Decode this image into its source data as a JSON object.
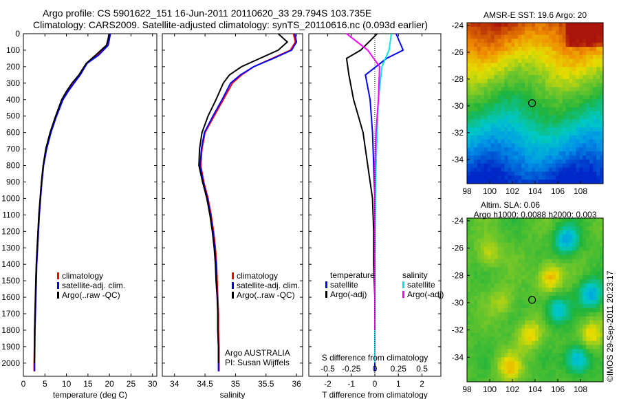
{
  "header": {
    "line1": "Argo profile: CS 5901622_151 16-Jun-2011 20110620_33 29.794S 103.735E",
    "line2": "Climatology: CARS2009. Satellite-adjusted climatology: synTS_20110616.nc (0.093d earlier)"
  },
  "footer": {
    "credit": "©IMOS 29-Sep-2011 20:23:17"
  },
  "colors": {
    "climatology": "#ff0000",
    "satellite": "#0000ff",
    "argo": "#000000",
    "sal_satellite": "#00e5e5",
    "sal_argo": "#ff00ff"
  },
  "chart_data": [
    {
      "type": "line",
      "id": "temperature_profile",
      "xlabel": "temperature (deg C)",
      "ylabel": "",
      "xlim": [
        0,
        31
      ],
      "ylim": [
        0,
        2080
      ],
      "y_inverted": true,
      "xticks": [
        0,
        5,
        10,
        15,
        20,
        25,
        30
      ],
      "yticks": [
        0,
        100,
        200,
        300,
        400,
        500,
        600,
        700,
        800,
        900,
        1000,
        1100,
        1200,
        1300,
        1400,
        1500,
        1600,
        1700,
        1800,
        1900,
        2000
      ],
      "legend": [
        {
          "label": "climatology",
          "color": "#ff0000"
        },
        {
          "label": "satellite-adj. clim.",
          "color": "#0000ff"
        },
        {
          "label": "Argo(..raw -QC)",
          "color": "#000000"
        }
      ],
      "series": [
        {
          "name": "climatology",
          "color": "#ff0000",
          "x": [
            20,
            19.8,
            19.5,
            17.2,
            14.8,
            13,
            11.5,
            10.2,
            9,
            7.6,
            6.3,
            5.3,
            4.6,
            4.2,
            3.9,
            3.6,
            3.4,
            3.2,
            3,
            2.9,
            2.8,
            2.7,
            2.6,
            2.55,
            2.5,
            2.5
          ],
          "y": [
            0,
            30,
            70,
            130,
            180,
            250,
            300,
            350,
            400,
            500,
            600,
            700,
            800,
            900,
            1000,
            1100,
            1200,
            1300,
            1400,
            1500,
            1600,
            1700,
            1800,
            1900,
            2000,
            2050
          ]
        },
        {
          "name": "satellite-adj. clim.",
          "color": "#0000ff",
          "x": [
            20.2,
            20,
            19.7,
            17.5,
            14.8,
            13.2,
            11.8,
            10.4,
            9.2,
            7.7,
            6.4,
            5.4,
            4.7,
            4.3,
            4,
            3.7,
            3.5,
            3.3,
            3.1,
            3,
            2.9,
            2.8,
            2.7,
            2.65,
            2.6,
            2.6
          ],
          "y": [
            0,
            30,
            70,
            130,
            180,
            250,
            300,
            350,
            400,
            500,
            600,
            700,
            800,
            900,
            1000,
            1100,
            1200,
            1300,
            1400,
            1500,
            1600,
            1700,
            1800,
            1900,
            2000,
            2050
          ]
        },
        {
          "name": "Argo(..raw -QC)",
          "color": "#000000",
          "x": [
            19.9,
            19.7,
            19.3,
            16.8,
            14.6,
            12.9,
            11.3,
            10,
            8.9,
            7.5,
            6.2,
            5.2,
            4.6,
            4.2,
            3.9,
            3.6,
            3.4,
            3.2,
            3,
            2.9,
            2.8,
            2.7,
            2.6,
            2.6,
            2.55
          ],
          "y": [
            0,
            30,
            70,
            130,
            180,
            250,
            300,
            350,
            400,
            500,
            600,
            700,
            800,
            900,
            1000,
            1100,
            1200,
            1300,
            1400,
            1500,
            1600,
            1700,
            1800,
            1900,
            2000
          ]
        }
      ]
    },
    {
      "type": "line",
      "id": "salinity_profile",
      "xlabel": "salinity",
      "xlim": [
        33.8,
        36.1
      ],
      "ylim": [
        0,
        2080
      ],
      "y_inverted": true,
      "xticks": [
        34,
        34.5,
        35,
        35.5,
        36
      ],
      "annotation": [
        "Argo AUSTRALIA",
        "PI: Susan Wijffels"
      ],
      "legend": [
        {
          "label": "climatology",
          "color": "#ff0000"
        },
        {
          "label": "satellite-adj. clim.",
          "color": "#0000ff"
        },
        {
          "label": "Argo(..raw -QC)",
          "color": "#000000"
        }
      ],
      "series": [
        {
          "name": "climatology",
          "color": "#ff0000",
          "x": [
            35.95,
            35.98,
            35.9,
            35.6,
            35.3,
            35.1,
            34.95,
            34.8,
            34.65,
            34.5,
            34.45,
            34.43,
            34.48,
            34.55,
            34.6,
            34.64,
            34.67,
            34.69,
            34.7,
            34.71,
            34.72,
            34.72,
            34.73,
            34.73,
            34.73
          ],
          "y": [
            0,
            50,
            100,
            150,
            200,
            250,
            300,
            400,
            500,
            600,
            700,
            800,
            900,
            1000,
            1100,
            1200,
            1300,
            1400,
            1500,
            1600,
            1700,
            1800,
            1900,
            2000,
            2050
          ]
        },
        {
          "name": "satellite-adj. clim.",
          "color": "#0000ff",
          "x": [
            35.97,
            36,
            35.92,
            35.62,
            35.3,
            35.08,
            34.92,
            34.78,
            34.63,
            34.49,
            34.44,
            34.42,
            34.47,
            34.54,
            34.59,
            34.63,
            34.66,
            34.68,
            34.69,
            34.7,
            34.71,
            34.71,
            34.72,
            34.72,
            34.72
          ],
          "y": [
            0,
            50,
            100,
            150,
            200,
            250,
            300,
            400,
            500,
            600,
            700,
            800,
            900,
            1000,
            1100,
            1200,
            1300,
            1400,
            1500,
            1600,
            1700,
            1800,
            1900,
            2000,
            2050
          ]
        },
        {
          "name": "Argo(..raw -QC)",
          "color": "#000000",
          "x": [
            35.7,
            35.85,
            35.7,
            35.4,
            35.1,
            34.9,
            34.8,
            34.68,
            34.55,
            34.45,
            34.41,
            34.4,
            34.46,
            34.53,
            34.58,
            34.62,
            34.65,
            34.67,
            34.68,
            34.7,
            34.71,
            34.71,
            34.72,
            34.72
          ],
          "y": [
            0,
            50,
            100,
            150,
            200,
            250,
            300,
            400,
            500,
            600,
            700,
            800,
            900,
            1000,
            1100,
            1200,
            1300,
            1400,
            1500,
            1600,
            1700,
            1800,
            1900,
            2000
          ]
        }
      ]
    },
    {
      "type": "line",
      "id": "difference_profile",
      "xlabel": "T difference from climatology",
      "xlabel_top": "S difference from climatology",
      "xlim": [
        -2.8,
        2.8
      ],
      "ylim": [
        0,
        2080
      ],
      "y_inverted": true,
      "xticks": [
        -2,
        -1,
        0,
        1,
        2
      ],
      "xticks_top_labels": [
        "-0.5",
        "-0.25",
        "0",
        "0.25",
        "0.5"
      ],
      "legend": [
        {
          "group": "temperature",
          "label": "satellite",
          "color": "#0000ff"
        },
        {
          "group": "temperature",
          "label": "Argo(-adj)",
          "color": "#000000"
        },
        {
          "group": "salinity",
          "label": "satellite",
          "color": "#00e5e5"
        },
        {
          "group": "salinity",
          "label": "Argo(-adj)",
          "color": "#ff00ff"
        }
      ],
      "series": [
        {
          "name": "temperature satellite",
          "color": "#0000ff",
          "x": [
            0.9,
            1.2,
            0.5,
            -0.4,
            -0.2,
            -0.1,
            -0.05,
            0,
            0,
            0,
            0,
            0,
            0,
            0
          ],
          "y": [
            0,
            100,
            150,
            250,
            400,
            600,
            800,
            1000,
            1200,
            1400,
            1600,
            1800,
            2000,
            2050
          ]
        },
        {
          "name": "temperature Argo(-adj)",
          "color": "#000000",
          "x": [
            0.1,
            -0.6,
            -1.2,
            -1.1,
            -0.9,
            -0.5,
            -0.3,
            -0.1,
            -0.05,
            -0.05,
            0,
            0,
            0
          ],
          "y": [
            0,
            100,
            150,
            250,
            400,
            600,
            800,
            1000,
            1200,
            1400,
            1600,
            1800,
            2000
          ]
        },
        {
          "name": "salinity satellite",
          "color": "#00e5e5",
          "x": [
            0.7,
            0.6,
            0.3,
            0.15,
            0.1,
            0.05,
            0.02,
            0.01,
            0,
            0,
            0,
            0
          ],
          "y": [
            0,
            100,
            200,
            400,
            600,
            800,
            1000,
            1200,
            1400,
            1600,
            1800,
            2000
          ]
        },
        {
          "name": "salinity Argo(-adj)",
          "color": "#ff00ff",
          "x": [
            -1.2,
            -0.3,
            0.2,
            0.15,
            0.05,
            0,
            0,
            0,
            0,
            0,
            0
          ],
          "y": [
            0,
            100,
            200,
            400,
            600,
            800,
            1000,
            1200,
            1400,
            1600,
            1800
          ]
        }
      ]
    },
    {
      "type": "heatmap",
      "id": "sst_map",
      "title": "AMSR-E SST: 19.6 Argo: 20",
      "xlim": [
        98,
        110
      ],
      "ylim": [
        -35.8,
        -23.8
      ],
      "xticks": [
        98,
        100,
        102,
        104,
        106,
        108
      ],
      "yticks": [
        -34,
        -32,
        -30,
        -28,
        -26,
        -24
      ],
      "marker": {
        "lon": 103.735,
        "lat": -29.794
      }
    },
    {
      "type": "heatmap",
      "id": "sla_map",
      "title": "Altim. SLA: 0.06",
      "subtitle": "Argo h1000: 0.0088 h2000: 0.003",
      "xlim": [
        98,
        110
      ],
      "ylim": [
        -35.8,
        -23.8
      ],
      "xticks": [
        98,
        100,
        102,
        104,
        106,
        108
      ],
      "yticks": [
        -34,
        -32,
        -30,
        -28,
        -26,
        -24
      ],
      "marker": {
        "lon": 103.735,
        "lat": -29.794
      }
    }
  ]
}
